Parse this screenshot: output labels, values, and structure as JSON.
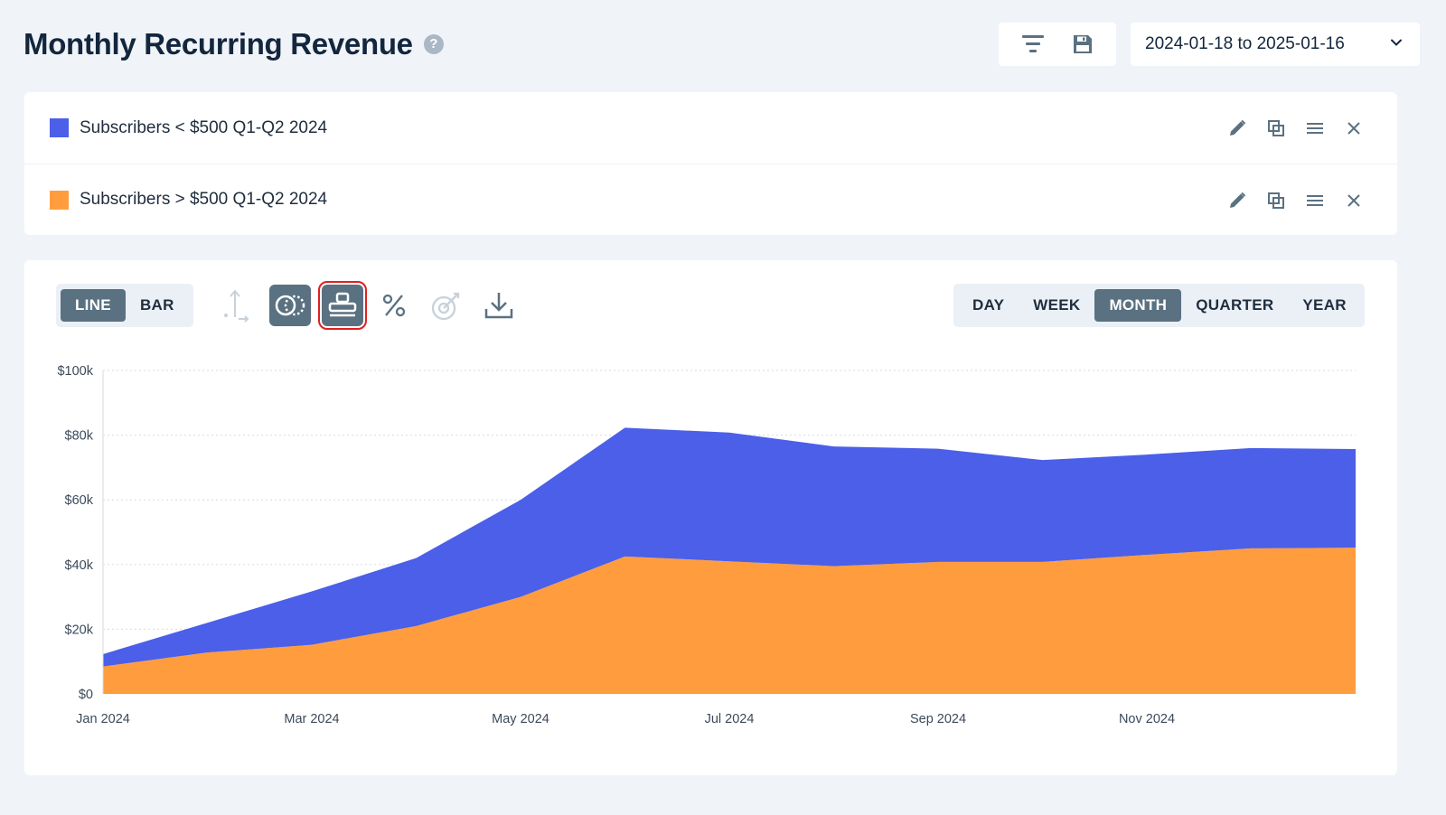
{
  "header": {
    "title": "Monthly Recurring Revenue",
    "help_glyph": "?",
    "tools": [
      {
        "icon": "filter-icon"
      },
      {
        "icon": "save-icon"
      }
    ],
    "date_range": "2024-01-18 to 2025-01-16"
  },
  "series": [
    {
      "label": "Subscribers < $500 Q1-Q2 2024",
      "color": "#4b5fe8"
    },
    {
      "label": "Subscribers > $500 Q1-Q2 2024",
      "color": "#ff9d3e"
    }
  ],
  "toolbar": {
    "chart_types": [
      "LINE",
      "BAR"
    ],
    "active_chart_type": "LINE",
    "periods": [
      "DAY",
      "WEEK",
      "MONTH",
      "QUARTER",
      "YEAR"
    ],
    "active_period": "MONTH",
    "icons": [
      "axis-icon",
      "compare-icon",
      "stack-icon",
      "percent-icon",
      "goal-icon",
      "download-icon"
    ]
  },
  "chart_data": {
    "type": "area",
    "stacked": true,
    "x": [
      "Jan 2024",
      "Feb 2024",
      "Mar 2024",
      "Apr 2024",
      "May 2024",
      "Jun 2024",
      "Jul 2024",
      "Aug 2024",
      "Sep 2024",
      "Oct 2024",
      "Nov 2024",
      "Dec 2024",
      "Jan 2025"
    ],
    "x_tick_labels": [
      "Jan 2024",
      "Mar 2024",
      "May 2024",
      "Jul 2024",
      "Sep 2024",
      "Nov 2024"
    ],
    "y_tick_labels": [
      "$0",
      "$20k",
      "$40k",
      "$60k",
      "$80k",
      "$100k"
    ],
    "ylim": [
      0,
      100000
    ],
    "series": [
      {
        "name": "Subscribers > $500 Q1-Q2 2024",
        "color": "#ff9d3e",
        "values": [
          8500,
          12800,
          15200,
          21000,
          30000,
          42500,
          41000,
          39500,
          40800,
          40800,
          43000,
          45000,
          45200
        ]
      },
      {
        "name": "Subscribers < $500 Q1-Q2 2024",
        "color": "#4b5fe8",
        "values": [
          3800,
          9200,
          16500,
          21000,
          30000,
          39800,
          39800,
          37000,
          35000,
          31500,
          31000,
          31000,
          30500
        ]
      }
    ],
    "grid": true
  }
}
